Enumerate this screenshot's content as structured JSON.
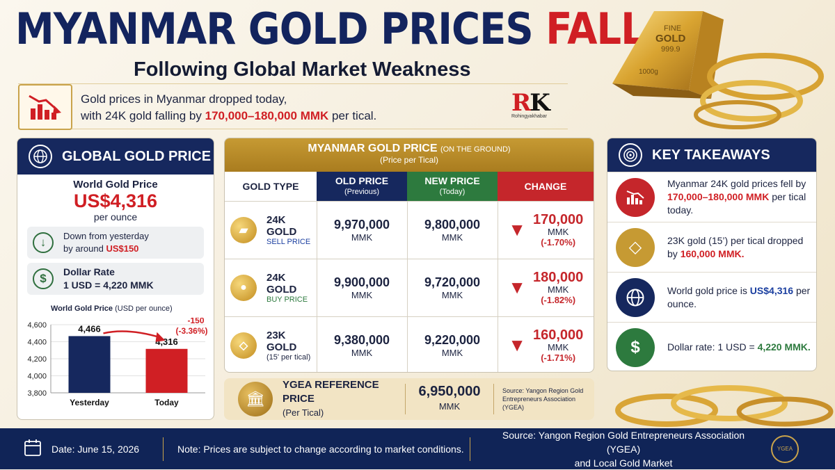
{
  "header": {
    "title_main": "MYANMAR GOLD PRICES",
    "title_accent": "FALL",
    "subtitle": "Following Global Market Weakness"
  },
  "intro": {
    "line1": "Gold prices in Myanmar dropped today,",
    "line2_pre": "with 24K gold falling by ",
    "line2_red": "170,000–180,000 MMK",
    "line2_post": " per tical."
  },
  "logo": {
    "letters": "RK",
    "sub": "Rohingyakhabar"
  },
  "bar_text": {
    "fine": "FINE",
    "gold": "GOLD",
    "purity": "999.9",
    "weight": "1000g"
  },
  "global": {
    "title": "GLOBAL GOLD PRICE",
    "label": "World Gold Price",
    "value": "US$4,316",
    "unit": "per ounce",
    "down_line1": "Down from yesterday",
    "down_line2_pre": "by around ",
    "down_line2_red": "US$150",
    "dollar_title": "Dollar Rate",
    "dollar_value": "1 USD = 4,220 MMK",
    "chart_title": "World Gold Price",
    "chart_title_unit": "(USD per ounce)"
  },
  "chart_data": {
    "type": "bar",
    "title": "World Gold Price (USD per ounce)",
    "categories": [
      "Yesterday",
      "Today"
    ],
    "values": [
      4466,
      4316
    ],
    "value_labels": [
      "4,466",
      "4,316"
    ],
    "colors": [
      "#16285e",
      "#d01f24"
    ],
    "ylim": [
      3800,
      4600
    ],
    "yticks": [
      3800,
      4000,
      4200,
      4400,
      4600
    ],
    "ytick_labels": [
      "3,800",
      "4,000",
      "4,200",
      "4,400",
      "4,600"
    ],
    "annotation_line1": "-150",
    "annotation_line2": "(-3.36%)"
  },
  "myanmar": {
    "title": "MYANMAR GOLD PRICE",
    "title_note": "(ON THE GROUND)",
    "subtitle": "(Price per Tical)",
    "headers": {
      "type": "GOLD TYPE",
      "old": "OLD PRICE",
      "old_sub": "(Previous)",
      "new": "NEW PRICE",
      "new_sub": "(Today)",
      "change": "CHANGE"
    },
    "rows": [
      {
        "name": "24K GOLD",
        "sub": "SELL PRICE",
        "old": "9,970,000",
        "new": "9,800,000",
        "unit": "MMK",
        "change": "170,000",
        "pct": "(-1.70%)"
      },
      {
        "name": "24K GOLD",
        "sub": "BUY PRICE",
        "old": "9,900,000",
        "new": "9,720,000",
        "unit": "MMK",
        "change": "180,000",
        "pct": "(-1.82%)"
      },
      {
        "name": "23K GOLD",
        "sub": "(15' per tical)",
        "old": "9,380,000",
        "new": "9,220,000",
        "unit": "MMK",
        "change": "160,000",
        "pct": "(-1.71%)"
      }
    ]
  },
  "ygea": {
    "label": "YGEA REFERENCE PRICE",
    "label_sub": "(Per Tical)",
    "value": "6,950,000",
    "unit": "MMK",
    "source": "Source: Yangon Region Gold Entrepreneurs Association (YGEA)"
  },
  "takeaways": {
    "title": "KEY TAKEAWAYS",
    "items": [
      {
        "pre": "Myanmar 24K gold prices fell by ",
        "red": "170,000–180,000 MMK",
        "post": " per tical today."
      },
      {
        "pre": "23K gold (15’) per tical dropped by ",
        "red": "160,000 MMK.",
        "post": ""
      },
      {
        "pre": "World gold price is ",
        "blue": "US$4,316",
        "post": " per ounce."
      },
      {
        "pre": "Dollar rate: 1 USD = ",
        "green": "4,220 MMK.",
        "post": ""
      }
    ]
  },
  "footer": {
    "date": "Date: June 15, 2026",
    "note": "Note: Prices are subject to change according to market conditions.",
    "source_line1": "Source: Yangon Region Gold Entrepreneurs Association (YGEA)",
    "source_line2": "and Local Gold Market",
    "seal": "YGEA"
  }
}
